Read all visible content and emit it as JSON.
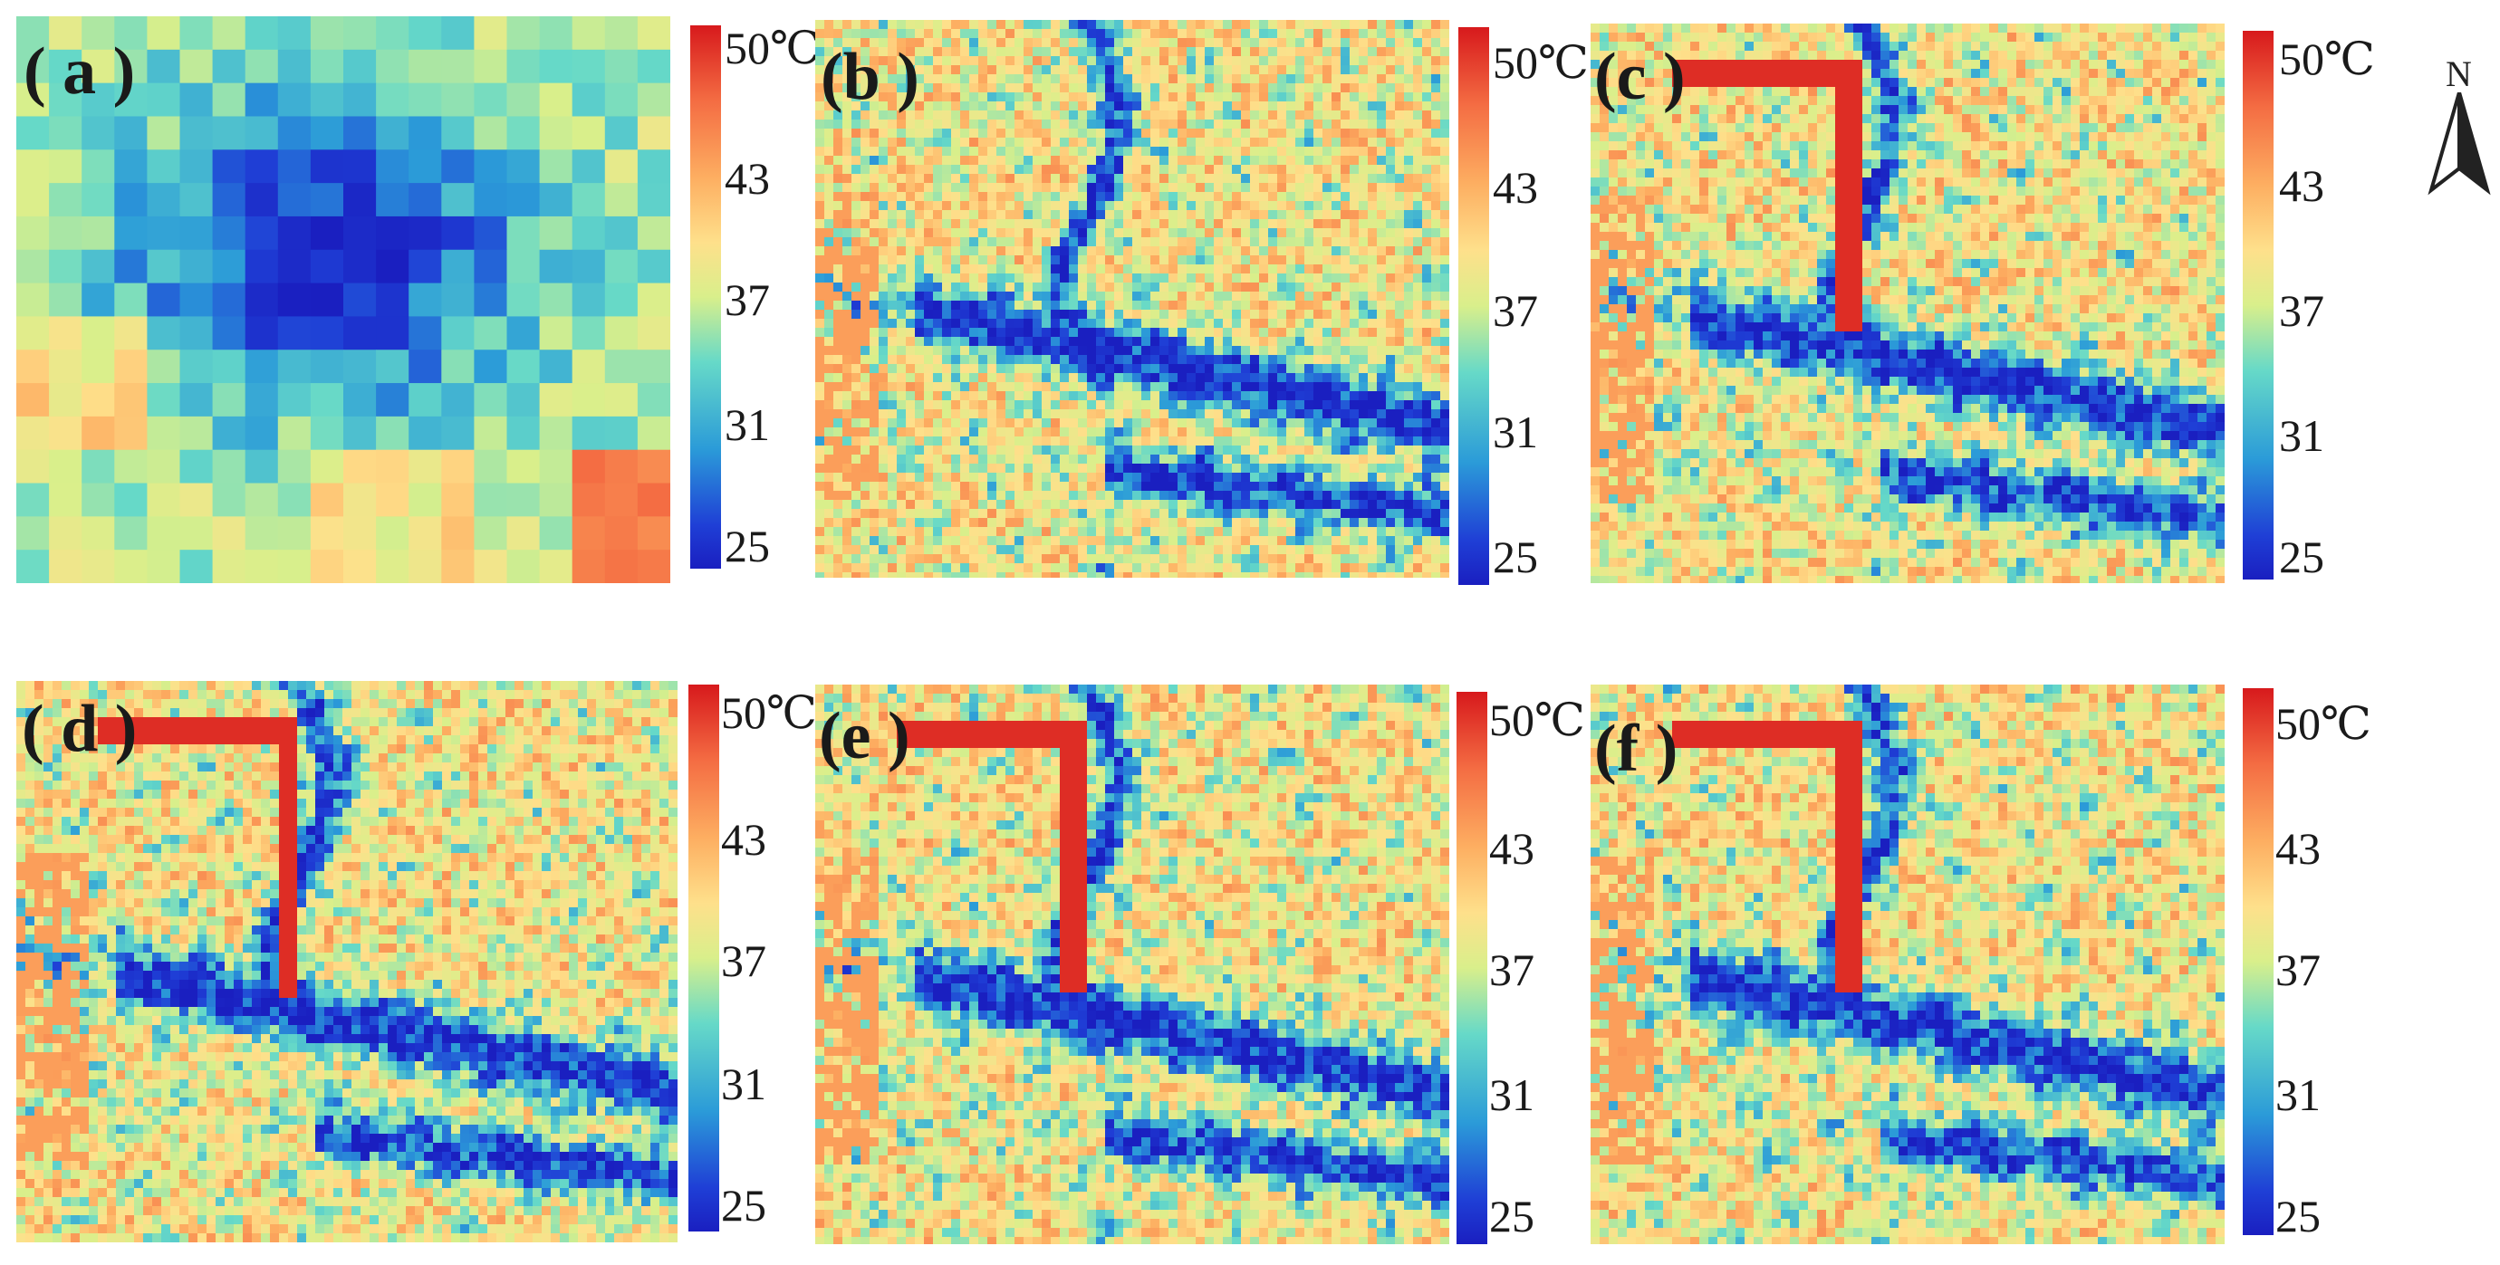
{
  "panels": [
    {
      "label": "( a )",
      "ticks": [
        "50℃",
        "43",
        "37",
        "31",
        "25"
      ],
      "kind": "coarse"
    },
    {
      "label": "(b )",
      "ticks": [
        "50℃",
        "43",
        "37",
        "31",
        "25"
      ],
      "kind": "fine"
    },
    {
      "label": "(c )",
      "ticks": [
        "50℃",
        "43",
        "37",
        "31",
        "25"
      ],
      "kind": "fine"
    },
    {
      "label": "( d )",
      "ticks": [
        "50℃",
        "43",
        "37",
        "31",
        "25"
      ],
      "kind": "fine"
    },
    {
      "label": "(e )",
      "ticks": [
        "50℃",
        "43",
        "37",
        "31",
        "25"
      ],
      "kind": "fine"
    },
    {
      "label": "(f )",
      "ticks": [
        "50℃",
        "43",
        "37",
        "31",
        "25"
      ],
      "kind": "fine"
    }
  ],
  "north_arrow": {
    "letter": "N",
    "icon": "north-arrow-icon"
  },
  "colorbar_colors": [
    "#d7191c",
    "#f46d43",
    "#fdae61",
    "#fee08b",
    "#d9ef8b",
    "#66d9c8",
    "#2b9bd8",
    "#1f3fd6",
    "#1a1fc0"
  ]
}
